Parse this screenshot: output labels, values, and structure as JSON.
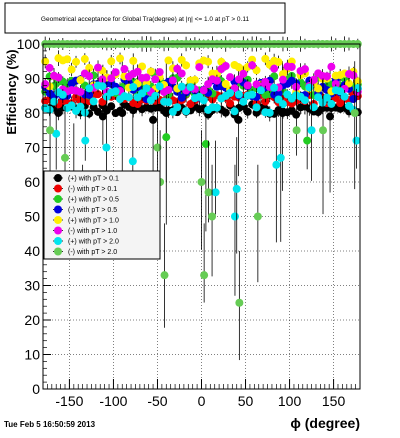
{
  "timestamp": "Tue Feb  5 16:50:59 2013",
  "chart_data": {
    "type": "scatter",
    "title": "Geometrical acceptance for Global Tra(degree) at |η| <= 1.0 at pT > 0.11",
    "xlabel": "ϕ (degree)",
    "ylabel": "Efficiency (%)",
    "xlim": [
      -180,
      180
    ],
    "ylim": [
      0,
      100
    ],
    "grid": true,
    "x_ticks": [
      -150,
      -100,
      -50,
      0,
      50,
      100,
      150
    ],
    "y_ticks": [
      0,
      10,
      20,
      30,
      40,
      50,
      60,
      70,
      80,
      90,
      100
    ],
    "legend_position": "middle-left",
    "series": [
      {
        "name": "(+) with pT > 0.1",
        "color": "#000000",
        "base": 81,
        "amp": 1.5,
        "drop_x": [
          -112,
          -90,
          -55,
          -40,
          42,
          92,
          146
        ],
        "drop_y": [
          79,
          80,
          78,
          80,
          78,
          80,
          79
        ]
      },
      {
        "name": "(-) with pT > 0.1",
        "color": "#ee0000",
        "base": 84,
        "amp": 1.5,
        "drop_x": [],
        "drop_y": []
      },
      {
        "name": "(+) with pT > 0.5",
        "color": "#22cc22",
        "base": 88,
        "amp": 3.0,
        "drop_x": [
          -40,
          5,
          120
        ],
        "drop_y": [
          73,
          71,
          72
        ]
      },
      {
        "name": "(-) with pT > 0.5",
        "color": "#0000dd",
        "base": 87,
        "amp": 3.0,
        "drop_x": [],
        "drop_y": []
      },
      {
        "name": "(+) with pT > 1.0",
        "color": "#ffee00",
        "base": 91,
        "amp": 5.0,
        "drop_x": [],
        "drop_y": []
      },
      {
        "name": "(-) with pT > 1.0",
        "color": "#ee00ee",
        "base": 90,
        "amp": 4.0,
        "drop_x": [],
        "drop_y": []
      },
      {
        "name": "(+) with pT > 2.0",
        "color": "#00e5ee",
        "base": 84,
        "amp": 4.0,
        "drop_x": [
          -165,
          -132,
          -108,
          -78,
          16,
          38,
          40,
          85,
          90,
          125,
          176
        ],
        "drop_y": [
          74,
          72,
          70,
          66,
          57,
          50,
          58,
          65,
          67,
          75,
          72
        ]
      },
      {
        "name": "(-) with pT > 2.0",
        "color": "#66cc55",
        "base": 100,
        "amp": 0.0,
        "drop_x": [
          -172,
          -155,
          -145,
          -135,
          -50,
          -47,
          -42,
          0,
          3,
          8,
          12,
          43,
          64,
          108,
          138,
          174
        ],
        "drop_y": [
          75,
          67,
          62,
          50,
          70,
          60,
          33,
          60,
          33,
          57,
          50,
          25,
          50,
          75,
          75,
          80
        ]
      }
    ]
  }
}
